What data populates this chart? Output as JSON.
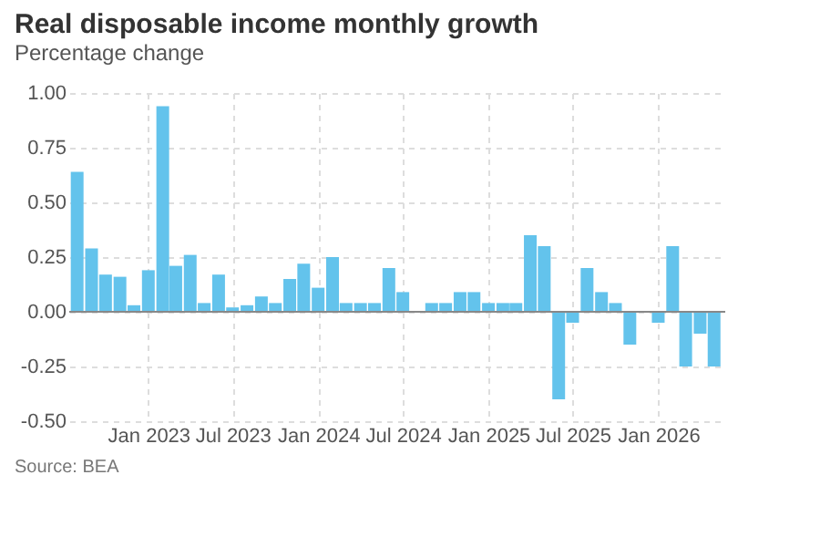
{
  "chart_data": {
    "type": "bar",
    "title": "Real disposable income monthly growth",
    "subtitle": "Percentage change",
    "annotations": [
      "Source: BEA"
    ],
    "x": [
      "2022-08",
      "2022-09",
      "2022-10",
      "2022-11",
      "2022-12",
      "2023-01",
      "2023-02",
      "2023-03",
      "2023-04",
      "2023-05",
      "2023-06",
      "2023-07",
      "2023-08",
      "2023-09",
      "2023-10",
      "2023-11",
      "2023-12",
      "2024-01",
      "2024-02",
      "2024-03",
      "2024-04",
      "2024-05",
      "2024-06",
      "2024-07",
      "2024-08",
      "2024-09",
      "2024-10",
      "2024-11",
      "2024-12",
      "2025-01",
      "2025-02",
      "2025-03",
      "2025-04",
      "2025-05",
      "2025-06",
      "2025-07",
      "2025-08",
      "2025-09",
      "2025-10",
      "2025-11",
      "2025-12",
      "2026-01",
      "2026-02",
      "2026-03",
      "2026-04",
      "2026-05"
    ],
    "values": [
      0.64,
      0.29,
      0.17,
      0.16,
      0.03,
      0.19,
      0.94,
      0.21,
      0.26,
      0.04,
      0.17,
      0.02,
      0.03,
      0.07,
      0.04,
      0.15,
      0.22,
      0.11,
      0.25,
      0.04,
      0.04,
      0.04,
      0.2,
      0.09,
      0,
      0.04,
      0.04,
      0.09,
      0.09,
      0.04,
      0.04,
      0.04,
      0.35,
      0.3,
      -0.4,
      -0.05,
      0.2,
      0.09,
      0.04,
      -0.15,
      0,
      -0.05,
      0.3,
      -0.25,
      -0.1,
      -0.25
    ],
    "color": "#63c3ec",
    "xlim": [
      "2022-07-15",
      "2026-05-25"
    ],
    "xticks": [
      {
        "value": "2023-01",
        "label": "Jan 2023"
      },
      {
        "value": "2023-07",
        "label": "Jul 2023"
      },
      {
        "value": "2024-01",
        "label": "Jan 2024"
      },
      {
        "value": "2024-07",
        "label": "Jul 2024"
      },
      {
        "value": "2025-01",
        "label": "Jan 2025"
      },
      {
        "value": "2025-07",
        "label": "Jul 2025"
      },
      {
        "value": "2026-01",
        "label": "Jan 2026"
      }
    ],
    "ylim": [
      -0.5,
      1.0
    ],
    "yticks": [
      {
        "value": -0.5,
        "label": "-0.50"
      },
      {
        "value": -0.25,
        "label": "-0.25"
      },
      {
        "value": 0,
        "label": "0.00"
      },
      {
        "value": 0.25,
        "label": "0.25"
      },
      {
        "value": 0.5,
        "label": "0.50"
      },
      {
        "value": 0.75,
        "label": "0.75"
      },
      {
        "value": 1.0,
        "label": "1.00"
      }
    ],
    "ref_lines": [
      {
        "axis": "y",
        "value": 0,
        "color": "#888888"
      }
    ],
    "grid": true
  }
}
